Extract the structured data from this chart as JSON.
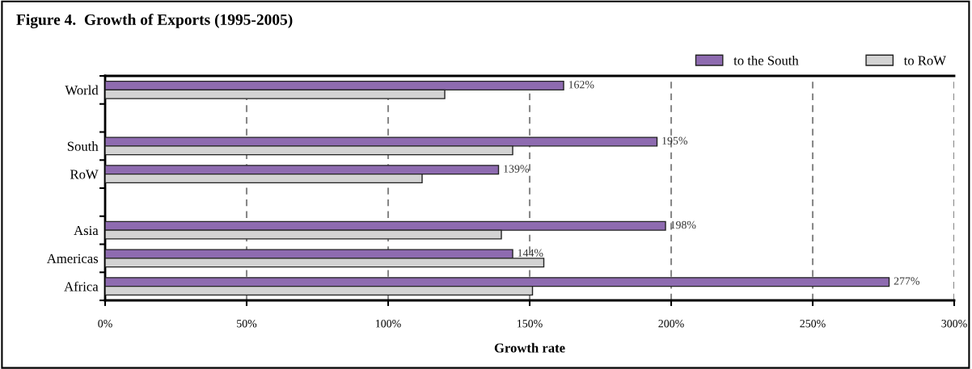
{
  "chart_data": {
    "type": "bar",
    "orientation": "horizontal",
    "title": "Figure 4.  Growth of Exports (1995-2005)",
    "xlabel": "Growth rate",
    "categories": [
      "World",
      null,
      "South",
      "RoW",
      null,
      "Asia",
      "Americas",
      "Africa"
    ],
    "series": [
      {
        "name": "to the South",
        "color": "#8e6bb0",
        "values": [
          162,
          null,
          195,
          139,
          null,
          198,
          144,
          277
        ],
        "value_labels": [
          "162%",
          null,
          "195%",
          "139%",
          null,
          "198%",
          "144%",
          "277%"
        ]
      },
      {
        "name": "to RoW",
        "color": "#d3d3d3",
        "values": [
          120,
          null,
          144,
          112,
          null,
          140,
          155,
          151
        ]
      }
    ],
    "xlim": [
      0,
      300
    ],
    "xticks": [
      {
        "value": 0,
        "label": "0%"
      },
      {
        "value": 50,
        "label": "50%"
      },
      {
        "value": 100,
        "label": "100%"
      },
      {
        "value": 150,
        "label": "150%"
      },
      {
        "value": 200,
        "label": "200%"
      },
      {
        "value": 250,
        "label": "250%"
      },
      {
        "value": 300,
        "label": "300%"
      }
    ],
    "grid": "x",
    "legend": "top right"
  }
}
